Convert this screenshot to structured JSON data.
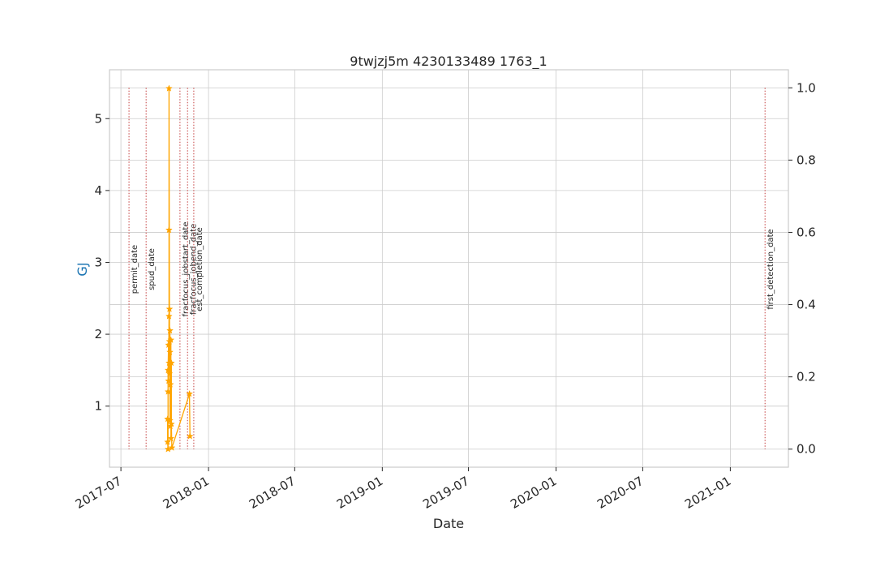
{
  "chart_data": {
    "type": "line",
    "title": "9twjzj5m 4230133489 1763_1",
    "xlabel": "Date",
    "ylabel": "GJ",
    "ylabel_color": "#1f77b4",
    "series_color": "#ffa500",
    "event_color": "#cd5c5c",
    "x_range": [
      "2017-06-07",
      "2021-05-03"
    ],
    "y_range": [
      0.15,
      5.68
    ],
    "y2_range": [
      -0.05,
      1.05
    ],
    "grid": true,
    "x_ticks": [
      "2017-07",
      "2018-01",
      "2018-07",
      "2019-01",
      "2019-07",
      "2020-01",
      "2020-07",
      "2021-01"
    ],
    "y_ticks": [
      1,
      2,
      3,
      4,
      5
    ],
    "y2_ticks": [
      "0.0",
      "0.2",
      "0.4",
      "0.6",
      "0.8",
      "1.0"
    ],
    "y2_tick_values": [
      0.0,
      0.2,
      0.4,
      0.6,
      0.8,
      1.0
    ],
    "events": [
      {
        "label": "permit_date",
        "date": "2017-07-18"
      },
      {
        "label": "spud_date",
        "date": "2017-08-23"
      },
      {
        "label": "fracfocus_jobstart_date",
        "date": "2017-11-02"
      },
      {
        "label": "fracfocus_jobend_date",
        "date": "2017-11-18"
      },
      {
        "label": "est_completion_date",
        "date": "2017-12-01"
      },
      {
        "label": "first_detection_date",
        "date": "2021-03-15"
      }
    ],
    "series": [
      {
        "points": [
          {
            "x": "2017-10-07",
            "y": 0.82
          },
          {
            "x": "2017-10-07",
            "y": 0.5
          },
          {
            "x": "2017-10-08",
            "y": 0.4
          },
          {
            "x": "2017-10-08",
            "y": 1.2
          },
          {
            "x": "2017-10-08",
            "y": 1.5
          },
          {
            "x": "2017-10-09",
            "y": 1.85
          },
          {
            "x": "2017-10-09",
            "y": 1.35
          },
          {
            "x": "2017-10-10",
            "y": 2.25
          },
          {
            "x": "2017-10-10",
            "y": 1.6
          },
          {
            "x": "2017-10-10",
            "y": 3.45
          },
          {
            "x": "2017-10-10",
            "y": 5.42
          },
          {
            "x": "2017-10-11",
            "y": 1.9
          },
          {
            "x": "2017-10-11",
            "y": 2.35
          },
          {
            "x": "2017-10-11",
            "y": 1.45
          },
          {
            "x": "2017-10-12",
            "y": 2.05
          },
          {
            "x": "2017-10-12",
            "y": 0.8
          },
          {
            "x": "2017-10-12",
            "y": 1.75
          },
          {
            "x": "2017-10-13",
            "y": 1.3
          },
          {
            "x": "2017-10-13",
            "y": 0.72
          },
          {
            "x": "2017-10-14",
            "y": 1.92
          },
          {
            "x": "2017-10-14",
            "y": 0.55
          },
          {
            "x": "2017-10-15",
            "y": 1.6
          },
          {
            "x": "2017-10-15",
            "y": 0.75
          },
          {
            "x": "2017-10-16",
            "y": 0.42
          },
          {
            "x": "2017-11-22",
            "y": 1.17
          },
          {
            "x": "2017-11-23",
            "y": 0.58
          }
        ]
      }
    ]
  }
}
